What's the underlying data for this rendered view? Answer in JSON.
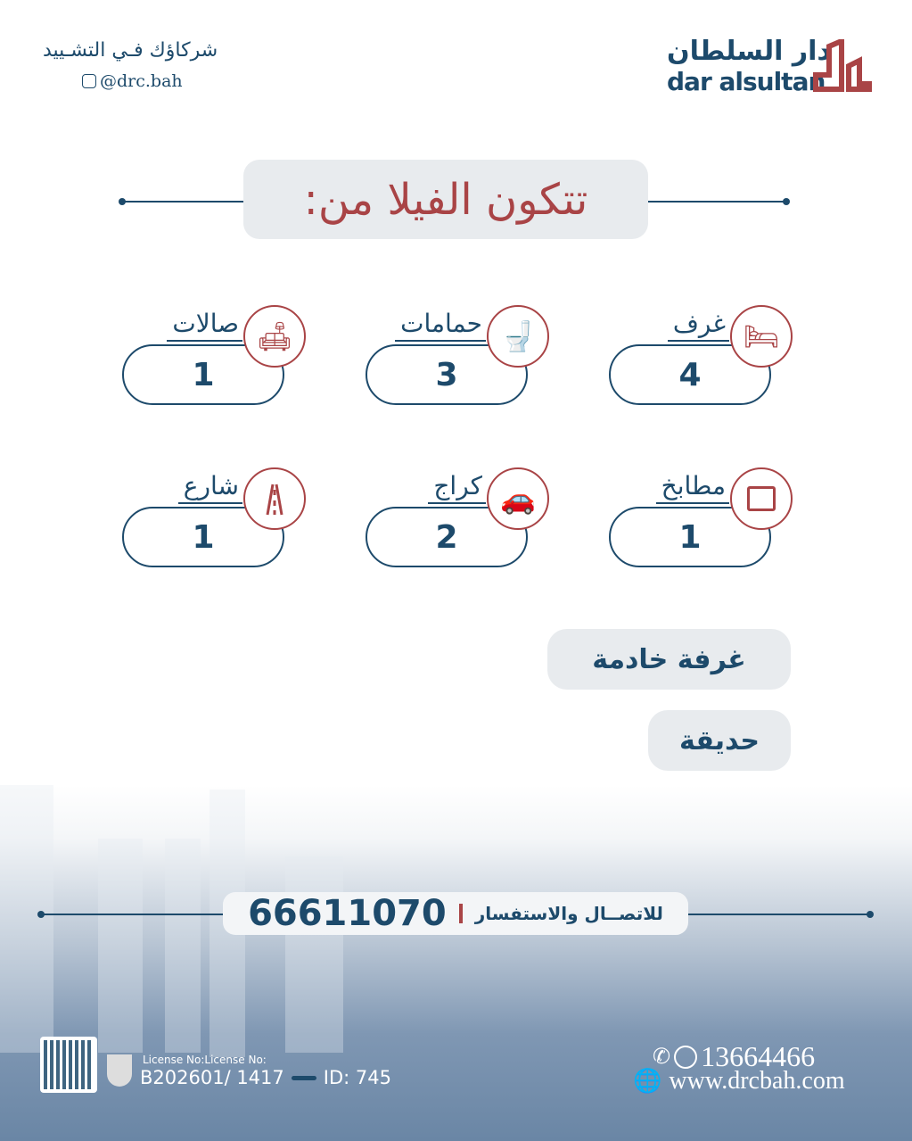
{
  "header": {
    "slogan": "شركاؤك فـي التشـييد",
    "instagram": "@drc.bah",
    "brand_ar": "دار السلطان",
    "brand_en": "dar alsultan"
  },
  "title": "تتكون الفيلا من:",
  "items": [
    {
      "label": "غرف",
      "value": "4",
      "icon": "bed-icon"
    },
    {
      "label": "حمامات",
      "value": "3",
      "icon": "toilet-icon"
    },
    {
      "label": "صالات",
      "value": "1",
      "icon": "sofa-icon"
    },
    {
      "label": "مطابخ",
      "value": "1",
      "icon": "oven-icon"
    },
    {
      "label": "كراج",
      "value": "2",
      "icon": "garage-car-icon"
    },
    {
      "label": "شارع",
      "value": "1",
      "icon": "road-icon"
    }
  ],
  "extras": [
    "غرفة خادمة",
    "حديقة"
  ],
  "contact": {
    "label": "للاتصــال والاستفسار",
    "phone": "66611070"
  },
  "footer": {
    "license_label": "License No:License No:",
    "license_no": "B202601/ 1417",
    "id": "ID: 745",
    "phone": "13664466",
    "website": "www.drcbah.com"
  },
  "colors": {
    "navy": "#1d4a6b",
    "red": "#a94446"
  }
}
